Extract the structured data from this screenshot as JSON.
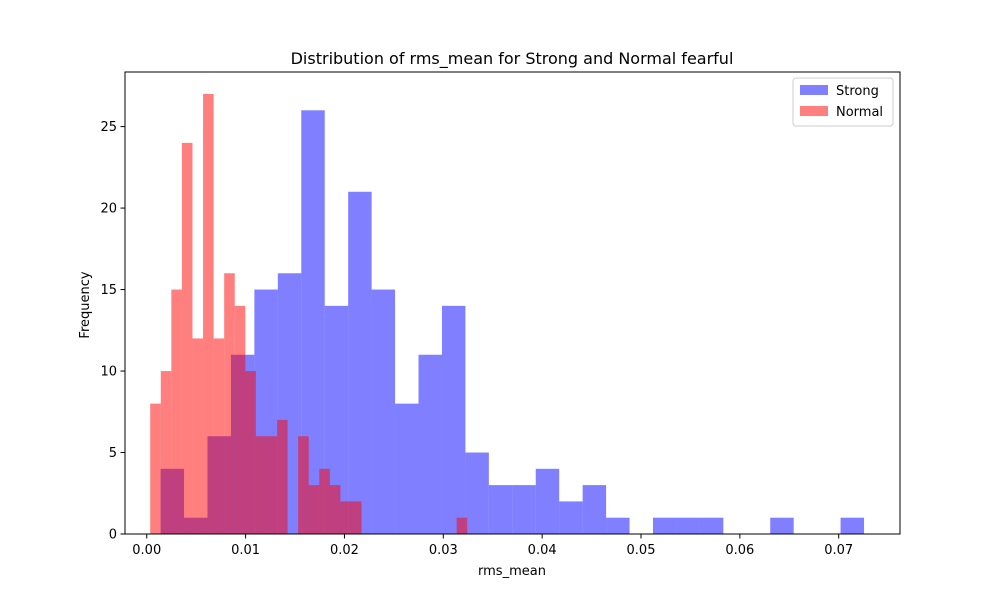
{
  "chart_data": {
    "type": "histogram",
    "title": "Distribution of rms_mean for Strong and Normal fearful",
    "xlabel": "rms_mean",
    "ylabel": "Frequency",
    "xlim": [
      -0.0022,
      0.0762
    ],
    "ylim": [
      0,
      28.35
    ],
    "xticks": [
      0.0,
      0.01,
      0.02,
      0.03,
      0.04,
      0.05,
      0.06,
      0.07
    ],
    "xtick_labels": [
      "0.00",
      "0.01",
      "0.02",
      "0.03",
      "0.04",
      "0.05",
      "0.06",
      "0.07"
    ],
    "yticks": [
      0,
      5,
      10,
      15,
      20,
      25
    ],
    "ytick_labels": [
      "0",
      "5",
      "10",
      "15",
      "20",
      "25"
    ],
    "grid": false,
    "legend": {
      "position": "top-right"
    },
    "series": [
      {
        "name": "Strong",
        "color": "#0000ff",
        "alpha": 0.5,
        "bin_start": 0.0014,
        "bin_width": 0.002372,
        "counts": [
          4,
          1,
          6,
          11,
          15,
          16,
          26,
          14,
          21,
          15,
          8,
          11,
          14,
          5,
          3,
          3,
          4,
          2,
          3,
          1,
          0,
          1,
          1,
          1,
          0,
          0,
          1,
          0,
          0,
          1
        ]
      },
      {
        "name": "Normal",
        "color": "#ff0000",
        "alpha": 0.5,
        "bin_start": 0.00035,
        "bin_width": 0.001069,
        "counts": [
          8,
          10,
          15,
          24,
          12,
          27,
          12,
          16,
          14,
          10,
          6,
          6,
          7,
          0,
          6,
          3,
          4,
          3,
          2,
          2,
          0,
          0,
          0,
          0,
          0,
          0,
          0,
          0,
          0,
          1
        ]
      }
    ]
  }
}
